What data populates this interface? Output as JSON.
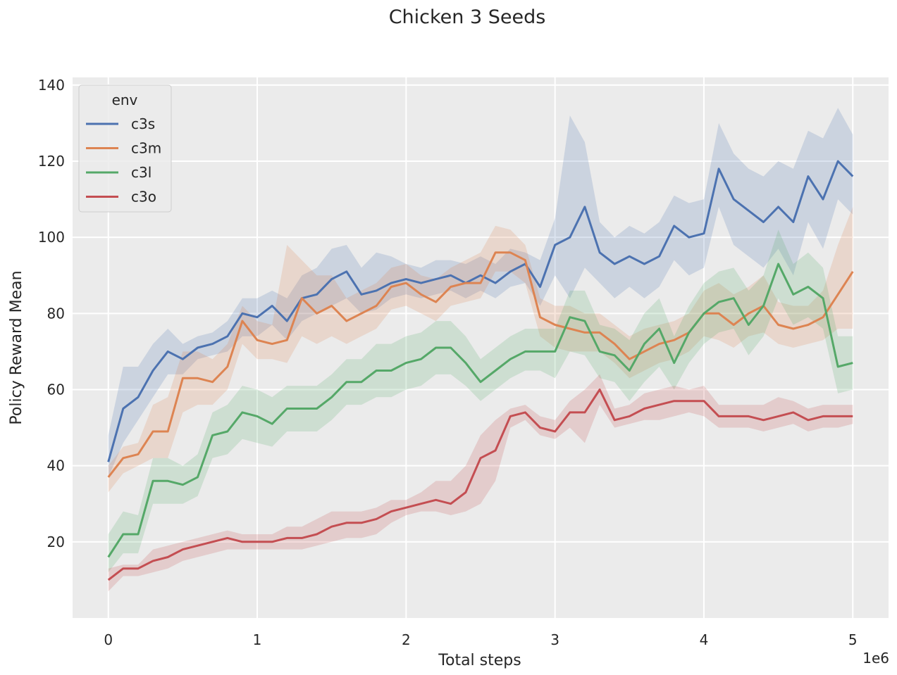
{
  "chart_data": {
    "type": "line",
    "title": "Chicken 3 Seeds",
    "xlabel": "Total steps",
    "ylabel": "Policy Reward Mean",
    "x_offset_label": "1e6",
    "xlim": [
      -0.24,
      5.24
    ],
    "ylim": [
      0,
      142
    ],
    "x_ticks": [
      0,
      1,
      2,
      3,
      4,
      5
    ],
    "y_ticks": [
      20,
      40,
      60,
      80,
      100,
      120,
      140
    ],
    "grid": true,
    "legend": {
      "title": "env",
      "placement": "top-left"
    },
    "x": [
      0,
      0.1,
      0.2,
      0.3,
      0.4,
      0.5,
      0.6,
      0.7,
      0.8,
      0.9,
      1.0,
      1.1,
      1.2,
      1.3,
      1.4,
      1.5,
      1.6,
      1.7,
      1.8,
      1.9,
      2.0,
      2.1,
      2.2,
      2.3,
      2.4,
      2.5,
      2.6,
      2.7,
      2.8,
      2.9,
      3.0,
      3.1,
      3.2,
      3.3,
      3.4,
      3.5,
      3.6,
      3.7,
      3.8,
      3.9,
      4.0,
      4.1,
      4.2,
      4.3,
      4.4,
      4.5,
      4.6,
      4.7,
      4.8,
      4.9,
      5.0
    ],
    "series": [
      {
        "name": "c3s",
        "color": "#4c72b0",
        "values": [
          41,
          55,
          58,
          65,
          70,
          68,
          71,
          72,
          74,
          80,
          79,
          82,
          78,
          84,
          85,
          89,
          91,
          85,
          86,
          88,
          89,
          88,
          89,
          90,
          88,
          90,
          88,
          91,
          93,
          87,
          98,
          100,
          108,
          96,
          93,
          95,
          93,
          95,
          103,
          100,
          101,
          118,
          110,
          107,
          104,
          108,
          104,
          116,
          110,
          120,
          116
        ],
        "lower": [
          37,
          46,
          52,
          58,
          64,
          64,
          68,
          69,
          70,
          74,
          74,
          77,
          73,
          78,
          80,
          82,
          84,
          80,
          81,
          84,
          85,
          84,
          85,
          86,
          84,
          86,
          84,
          87,
          88,
          82,
          90,
          84,
          92,
          88,
          84,
          87,
          84,
          87,
          94,
          90,
          92,
          108,
          98,
          95,
          92,
          97,
          90,
          104,
          97,
          110,
          106
        ],
        "upper": [
          48,
          66,
          66,
          72,
          76,
          72,
          74,
          75,
          78,
          84,
          84,
          86,
          84,
          90,
          92,
          97,
          98,
          92,
          96,
          95,
          93,
          92,
          94,
          94,
          93,
          95,
          93,
          97,
          96,
          94,
          105,
          132,
          125,
          104,
          100,
          103,
          101,
          104,
          111,
          109,
          110,
          130,
          122,
          118,
          116,
          120,
          118,
          128,
          126,
          134,
          127
        ]
      },
      {
        "name": "c3m",
        "color": "#dd8452",
        "values": [
          37,
          42,
          43,
          49,
          49,
          63,
          63,
          62,
          66,
          78,
          73,
          72,
          73,
          84,
          80,
          82,
          78,
          80,
          82,
          87,
          88,
          85,
          83,
          87,
          88,
          88,
          96,
          96,
          94,
          79,
          77,
          76,
          75,
          75,
          72,
          68,
          70,
          72,
          73,
          75,
          80,
          80,
          77,
          80,
          82,
          77,
          76,
          77,
          79,
          85,
          91
        ],
        "lower": [
          33,
          38,
          40,
          42,
          42,
          54,
          56,
          56,
          60,
          72,
          68,
          68,
          67,
          74,
          72,
          74,
          72,
          74,
          76,
          81,
          82,
          80,
          78,
          82,
          83,
          84,
          91,
          91,
          88,
          74,
          71,
          70,
          70,
          70,
          67,
          63,
          65,
          67,
          68,
          70,
          74,
          73,
          71,
          74,
          75,
          72,
          71,
          72,
          73,
          76,
          76
        ],
        "upper": [
          40,
          45,
          46,
          56,
          58,
          70,
          70,
          68,
          72,
          82,
          78,
          77,
          98,
          94,
          90,
          90,
          84,
          86,
          88,
          92,
          93,
          90,
          89,
          92,
          94,
          96,
          103,
          102,
          98,
          84,
          82,
          82,
          80,
          80,
          77,
          74,
          76,
          77,
          78,
          80,
          86,
          88,
          85,
          87,
          90,
          83,
          82,
          82,
          86,
          98,
          108
        ]
      },
      {
        "name": "c3l",
        "color": "#55a868",
        "values": [
          16,
          22,
          22,
          36,
          36,
          35,
          37,
          48,
          49,
          54,
          53,
          51,
          55,
          55,
          55,
          58,
          62,
          62,
          65,
          65,
          67,
          68,
          71,
          71,
          67,
          62,
          65,
          68,
          70,
          70,
          70,
          79,
          78,
          70,
          69,
          65,
          72,
          76,
          67,
          75,
          80,
          83,
          84,
          77,
          82,
          93,
          85,
          87,
          84,
          66,
          67
        ],
        "lower": [
          12,
          17,
          17,
          30,
          30,
          30,
          32,
          42,
          43,
          47,
          46,
          45,
          49,
          49,
          49,
          52,
          56,
          56,
          58,
          58,
          60,
          61,
          64,
          64,
          61,
          57,
          60,
          63,
          65,
          65,
          63,
          70,
          69,
          63,
          62,
          57,
          62,
          66,
          60,
          67,
          72,
          75,
          76,
          69,
          74,
          84,
          77,
          79,
          76,
          59,
          60
        ],
        "upper": [
          22,
          28,
          27,
          42,
          42,
          40,
          43,
          54,
          56,
          61,
          60,
          58,
          61,
          61,
          61,
          64,
          68,
          68,
          72,
          72,
          74,
          75,
          78,
          78,
          74,
          68,
          71,
          74,
          76,
          76,
          76,
          86,
          86,
          77,
          76,
          73,
          80,
          84,
          74,
          82,
          88,
          91,
          92,
          86,
          90,
          102,
          93,
          96,
          92,
          74,
          74
        ]
      },
      {
        "name": "c3o",
        "color": "#c44e52",
        "values": [
          10,
          13,
          13,
          15,
          16,
          18,
          19,
          20,
          21,
          20,
          20,
          20,
          21,
          21,
          22,
          24,
          25,
          25,
          26,
          28,
          29,
          30,
          31,
          30,
          33,
          42,
          44,
          53,
          54,
          50,
          49,
          54,
          54,
          60,
          52,
          53,
          55,
          56,
          57,
          57,
          57,
          53,
          53,
          53,
          52,
          53,
          54,
          52,
          53,
          53,
          53
        ],
        "lower": [
          7,
          11,
          11,
          12,
          13,
          15,
          16,
          17,
          18,
          18,
          18,
          18,
          18,
          18,
          19,
          20,
          21,
          21,
          22,
          25,
          27,
          28,
          28,
          27,
          28,
          30,
          36,
          50,
          52,
          48,
          47,
          50,
          46,
          56,
          50,
          51,
          52,
          52,
          53,
          54,
          53,
          50,
          50,
          50,
          49,
          50,
          51,
          49,
          50,
          50,
          51
        ],
        "upper": [
          13,
          14,
          14,
          18,
          19,
          20,
          21,
          22,
          23,
          22,
          22,
          22,
          24,
          24,
          26,
          28,
          28,
          28,
          29,
          31,
          31,
          33,
          36,
          36,
          40,
          48,
          52,
          55,
          56,
          53,
          52,
          57,
          60,
          64,
          55,
          56,
          59,
          60,
          61,
          60,
          61,
          56,
          56,
          56,
          56,
          58,
          57,
          55,
          56,
          56,
          56
        ]
      }
    ]
  }
}
